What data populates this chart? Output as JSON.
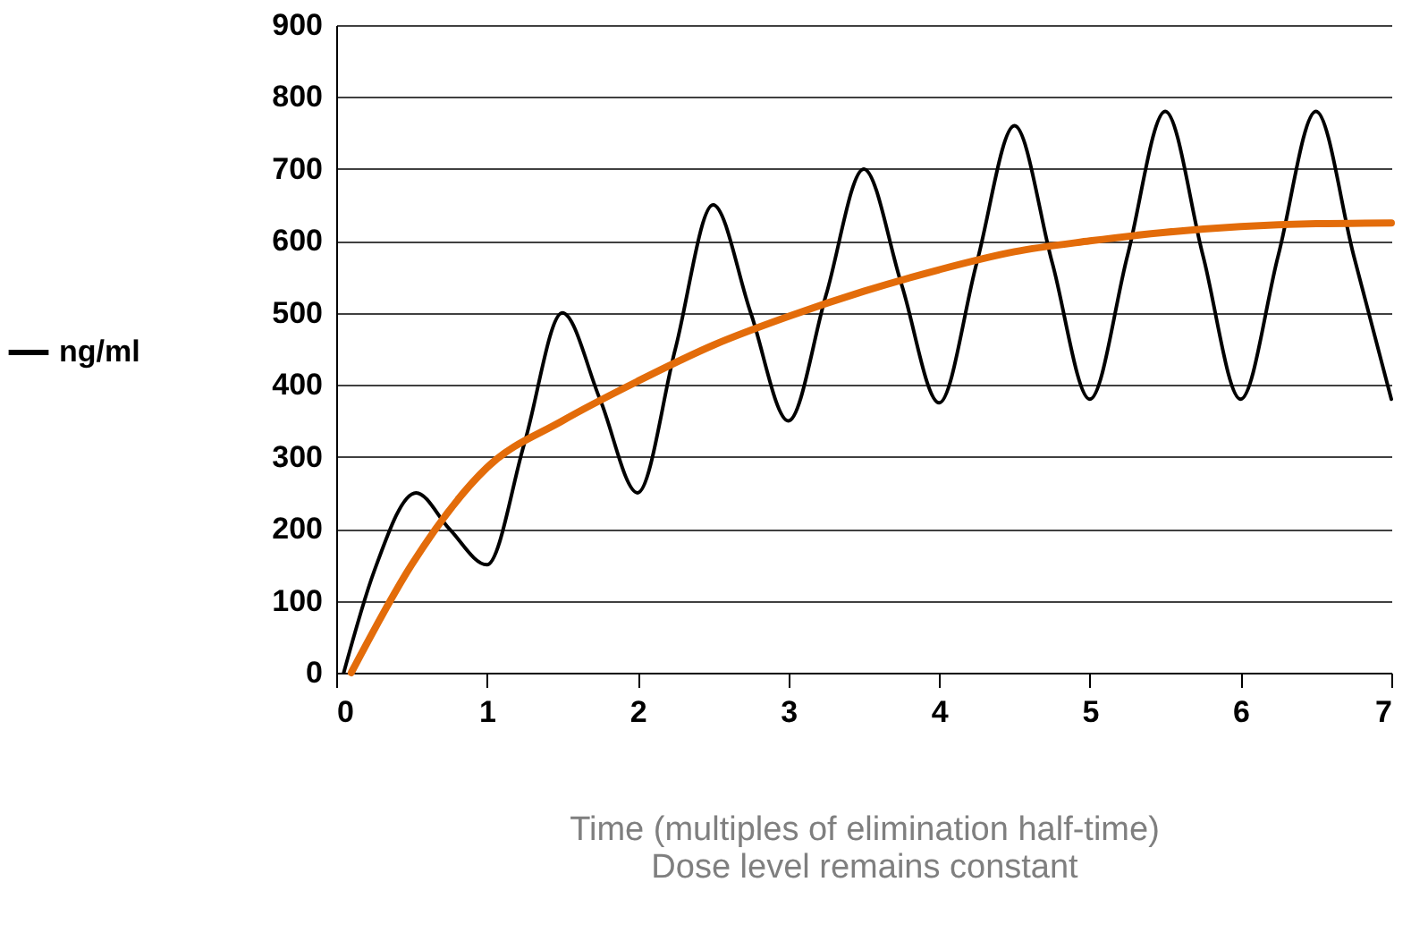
{
  "chart_data": {
    "type": "line",
    "xlabel": "Time (multiples of elimination half-time)",
    "annotations": [
      "Dose level remains constant"
    ],
    "xlim": [
      0,
      7
    ],
    "xticks": [
      0,
      1,
      2,
      3,
      4,
      5,
      6,
      7
    ],
    "ylim": [
      0,
      900
    ],
    "yticks": [
      0,
      100,
      200,
      300,
      400,
      500,
      600,
      700,
      800,
      900
    ],
    "grid": "y",
    "legend": "left",
    "marker": "none",
    "line_style": "solid",
    "series": [
      {
        "name": "ng/ml",
        "color": "#000000",
        "x": [
          0.05,
          0.25,
          0.53,
          0.75,
          1.0,
          1.25,
          1.5,
          1.75,
          2.0,
          2.25,
          2.5,
          2.75,
          3.0,
          3.25,
          3.5,
          3.75,
          4.0,
          4.25,
          4.5,
          4.75,
          5.0,
          5.25,
          5.5,
          5.75,
          6.0,
          6.25,
          6.5,
          6.75,
          7.0
        ],
        "values": [
          0,
          140,
          250,
          200,
          150,
          320,
          500,
          380,
          250,
          450,
          650,
          500,
          350,
          525,
          700,
          540,
          375,
          570,
          760,
          570,
          380,
          580,
          780,
          580,
          380,
          580,
          780,
          580,
          380
        ]
      },
      {
        "color": "#e36c0a",
        "x": [
          0.1,
          0.5,
          1.0,
          1.5,
          2.0,
          2.5,
          3.0,
          3.5,
          4.0,
          4.5,
          5.0,
          5.5,
          6.0,
          6.5,
          7.0
        ],
        "values": [
          0,
          150,
          285,
          350,
          405,
          455,
          495,
          530,
          560,
          585,
          600,
          612,
          620,
          624,
          625
        ]
      }
    ]
  }
}
